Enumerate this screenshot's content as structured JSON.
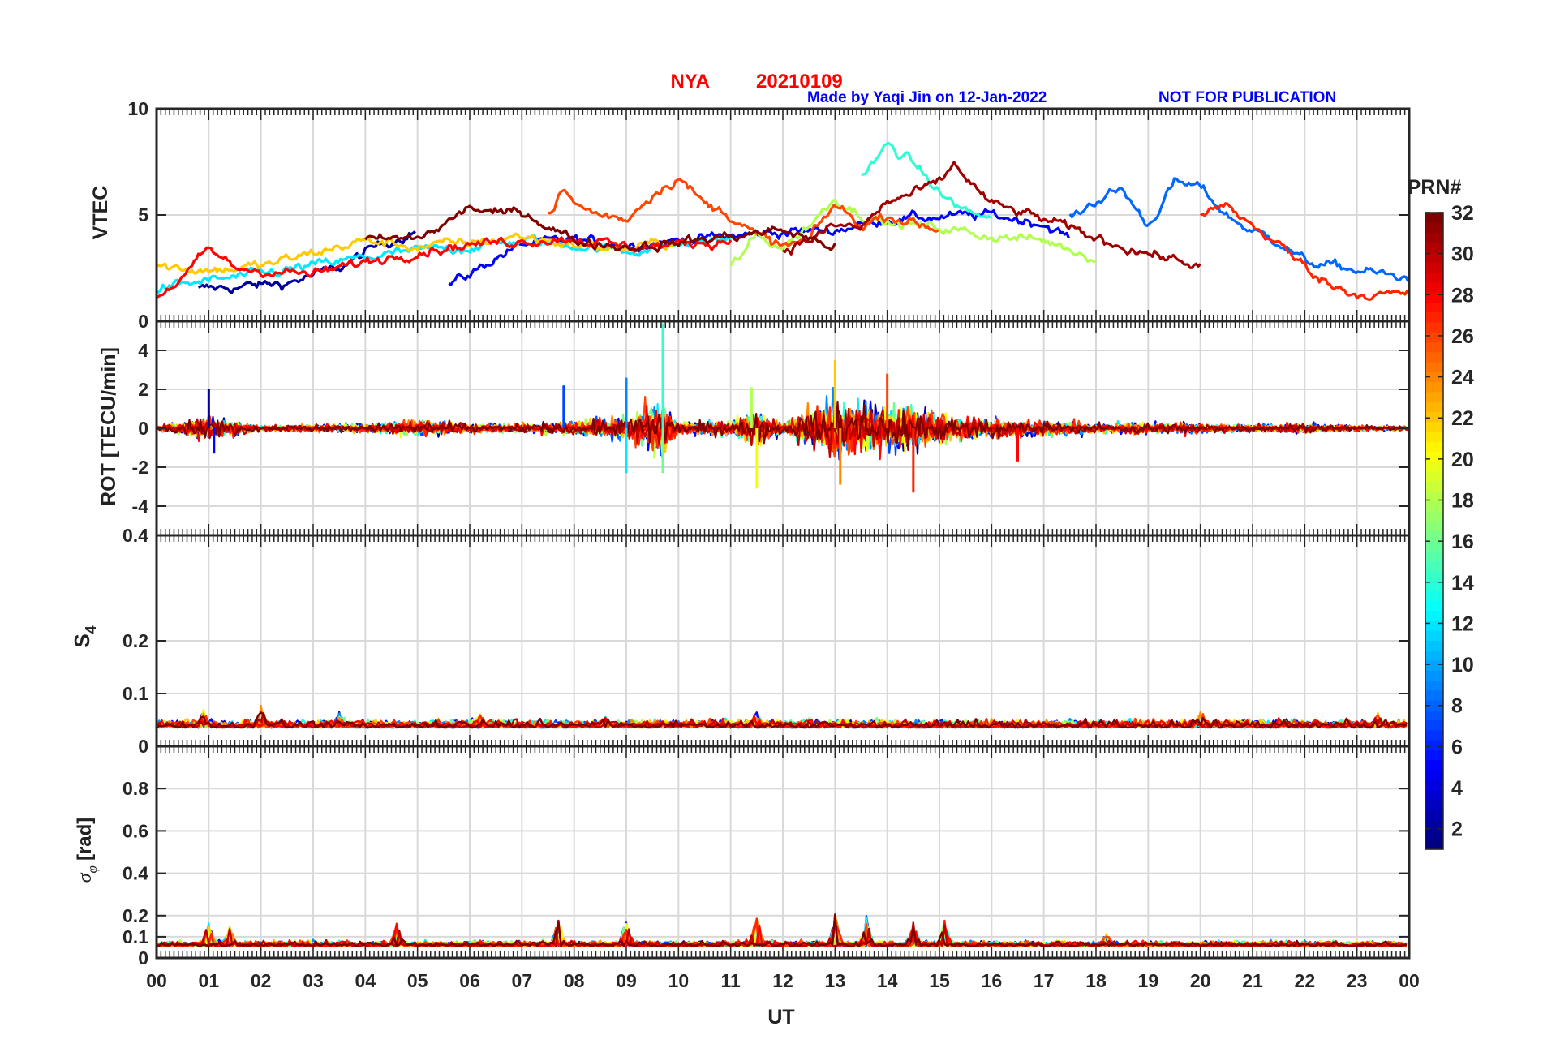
{
  "header": {
    "station": "NYA",
    "date": "20210109",
    "credit": "Made by Yaqi Jin on 12-Jan-2022",
    "notice": "NOT FOR PUBLICATION",
    "title_color": "#ff0000",
    "credit_color": "#0000ff"
  },
  "chart_data": [
    {
      "id": "vtec",
      "type": "line",
      "ylabel": "VTEC",
      "ylim": [
        0,
        10
      ],
      "yticks": [
        0,
        5,
        10
      ],
      "ytick_labels": [
        "0",
        "5",
        "10"
      ],
      "xlim": [
        0,
        24
      ],
      "grid": true,
      "series_summary": [
        {
          "prn": 2,
          "x": [
            0.8,
            1.5,
            2.5,
            3.5,
            4.2,
            5.0
          ],
          "y": [
            1.5,
            1.6,
            1.8,
            2.5,
            3.5,
            4.3
          ]
        },
        {
          "prn": 5,
          "x": [
            5.6,
            6.0,
            6.5,
            7.0,
            8.0,
            9.0,
            10.0,
            11.0,
            12.0,
            13.0,
            14.0,
            15.0,
            16.0,
            17.0,
            17.5
          ],
          "y": [
            1.7,
            2.2,
            3.0,
            3.6,
            3.8,
            3.6,
            3.8,
            4.0,
            4.2,
            4.3,
            4.8,
            4.9,
            5.0,
            4.6,
            3.9
          ]
        },
        {
          "prn": 8,
          "x": [
            17.5,
            18.0,
            18.5,
            19.0,
            19.5,
            20.0,
            20.5,
            21.0,
            21.5,
            22.0,
            23.0,
            24.0
          ],
          "y": [
            4.8,
            5.7,
            6.2,
            4.5,
            6.5,
            6.3,
            5.0,
            4.2,
            3.8,
            2.8,
            2.4,
            2.0
          ]
        },
        {
          "prn": 12,
          "x": [
            0.0,
            1.0,
            2.0,
            3.0,
            4.0,
            5.0,
            6.0,
            7.0,
            8.0,
            9.0,
            10.0,
            11.0
          ],
          "y": [
            1.5,
            1.9,
            2.2,
            2.6,
            3.0,
            3.3,
            3.5,
            3.8,
            3.6,
            3.3,
            3.6,
            3.9
          ]
        },
        {
          "prn": 14,
          "x": [
            13.5,
            13.8,
            14.0,
            14.3,
            14.6,
            15.0,
            15.5,
            16.0
          ],
          "y": [
            6.8,
            7.6,
            8.3,
            7.8,
            7.2,
            6.0,
            5.2,
            4.8
          ]
        },
        {
          "prn": 18,
          "x": [
            11.0,
            11.5,
            12.0,
            12.5,
            13.0,
            13.5,
            14.0,
            15.0,
            16.0,
            17.0,
            18.0
          ],
          "y": [
            2.5,
            4.0,
            3.5,
            4.5,
            5.8,
            5.0,
            4.6,
            4.4,
            4.0,
            3.8,
            3.0
          ]
        },
        {
          "prn": 22,
          "x": [
            0.0,
            1.0,
            2.0,
            3.0,
            4.0,
            5.0,
            6.0,
            7.0,
            8.0,
            9.0,
            10.0
          ],
          "y": [
            2.6,
            2.4,
            2.6,
            3.2,
            3.8,
            3.5,
            3.7,
            4.0,
            3.6,
            3.4,
            3.8
          ]
        },
        {
          "prn": 26,
          "x": [
            7.5,
            7.8,
            8.0,
            8.5,
            9.0,
            9.5,
            10.0,
            10.5,
            11.0,
            11.5,
            12.0,
            12.5,
            13.0,
            13.5,
            14.0,
            15.0
          ],
          "y": [
            5.0,
            6.2,
            5.5,
            5.0,
            4.8,
            6.0,
            6.8,
            5.5,
            5.0,
            4.0,
            3.5,
            3.8,
            5.5,
            4.5,
            5.0,
            4.3
          ]
        },
        {
          "prn": 28,
          "x": [
            0.0,
            0.5,
            1.0,
            1.5,
            2.0,
            3.0,
            4.0,
            5.0,
            6.0,
            7.0,
            8.0,
            9.0,
            10.0,
            11.0
          ],
          "y": [
            1.2,
            2.0,
            3.4,
            2.5,
            2.4,
            2.2,
            2.8,
            3.3,
            3.6,
            3.8,
            3.9,
            3.5,
            3.6,
            3.8
          ]
        },
        {
          "prn": 31,
          "x": [
            12.0,
            12.5,
            13.0,
            13.5,
            14.0,
            14.5,
            15.0,
            15.3,
            15.6,
            16.0,
            17.0,
            18.0,
            19.0,
            19.5,
            20.0
          ],
          "y": [
            3.4,
            3.8,
            4.5,
            4.4,
            5.6,
            6.0,
            6.5,
            7.4,
            6.5,
            5.5,
            4.8,
            3.9,
            3.2,
            2.9,
            2.6
          ]
        },
        {
          "prn": 32,
          "x": [
            4.0,
            5.0,
            5.5,
            6.0,
            6.5,
            7.0,
            8.0,
            9.0,
            10.0,
            11.0,
            12.0,
            13.0
          ],
          "y": [
            3.8,
            3.9,
            4.5,
            5.4,
            5.0,
            5.2,
            3.8,
            3.5,
            3.7,
            4.0,
            4.3,
            3.5
          ]
        },
        {
          "prn": 27,
          "x": [
            20.0,
            20.5,
            21.0,
            21.5,
            22.0,
            22.5,
            23.0,
            24.0
          ],
          "y": [
            5.0,
            5.4,
            4.5,
            3.6,
            2.6,
            1.7,
            1.3,
            1.2
          ]
        }
      ]
    },
    {
      "id": "rot",
      "type": "line",
      "ylabel": "ROT [TECU/min]",
      "ylim": [
        -5.5,
        5.5
      ],
      "yticks": [
        -4,
        -2,
        0,
        2,
        4
      ],
      "ytick_labels": [
        "-4",
        "-2",
        "0",
        "2",
        "4"
      ],
      "xlim": [
        0,
        24
      ],
      "grid": true,
      "activity_envelope": {
        "x": [
          0,
          1,
          2,
          3,
          4,
          5,
          6,
          7,
          8,
          9,
          9.7,
          10,
          11,
          11.5,
          12,
          13,
          13.5,
          14,
          14.5,
          15,
          16,
          17,
          18,
          19,
          20,
          21,
          22,
          23,
          24
        ],
        "amplitude": [
          0.2,
          1.2,
          0.3,
          0.4,
          0.5,
          0.9,
          0.5,
          0.5,
          0.8,
          1.2,
          3.0,
          0.6,
          0.8,
          2.0,
          0.6,
          3.3,
          3.0,
          2.5,
          2.5,
          1.5,
          1.0,
          0.8,
          0.5,
          0.6,
          0.5,
          0.4,
          0.5,
          0.3,
          0.2
        ]
      },
      "spikes": [
        {
          "x": 1.0,
          "y": 2.0
        },
        {
          "x": 1.1,
          "y": -1.3
        },
        {
          "x": 7.8,
          "y": 2.2
        },
        {
          "x": 9.0,
          "y": 2.6
        },
        {
          "x": 9.0,
          "y": -2.3
        },
        {
          "x": 9.7,
          "y": 5.4
        },
        {
          "x": 9.7,
          "y": -2.3
        },
        {
          "x": 11.4,
          "y": 2.1
        },
        {
          "x": 11.5,
          "y": -3.1
        },
        {
          "x": 13.0,
          "y": 3.5
        },
        {
          "x": 13.1,
          "y": -2.9
        },
        {
          "x": 14.0,
          "y": 2.8
        },
        {
          "x": 14.5,
          "y": -3.3
        },
        {
          "x": 16.5,
          "y": -1.7
        }
      ]
    },
    {
      "id": "s4",
      "type": "line",
      "ylabel": "S4",
      "ylim": [
        0,
        0.4
      ],
      "yticks": [
        0,
        0.1,
        0.2,
        0.4
      ],
      "ytick_labels": [
        "0",
        "0.1",
        "0.2",
        "0.4"
      ],
      "xlim": [
        0,
        24
      ],
      "grid": true,
      "baseline": 0.035,
      "noise": 0.012,
      "peaks": [
        {
          "x": 0.9,
          "y": 0.07
        },
        {
          "x": 2.0,
          "y": 0.08
        },
        {
          "x": 3.5,
          "y": 0.065
        },
        {
          "x": 6.2,
          "y": 0.065
        },
        {
          "x": 8.6,
          "y": 0.06
        },
        {
          "x": 11.5,
          "y": 0.07
        },
        {
          "x": 20.0,
          "y": 0.075
        },
        {
          "x": 23.4,
          "y": 0.065
        }
      ]
    },
    {
      "id": "sigma_phi",
      "type": "line",
      "ylabel": "σ",
      "ylabel_subscript": "φ",
      "ylabel_unit": "[rad]",
      "ylim": [
        0,
        1
      ],
      "yticks": [
        0,
        0.1,
        0.2,
        0.4,
        0.6,
        0.8
      ],
      "ytick_labels": [
        "0",
        "0.1",
        "0.2",
        "0.4",
        "0.6",
        "0.8"
      ],
      "xlim": [
        0,
        24
      ],
      "grid": true,
      "baseline": 0.055,
      "noise": 0.02,
      "peaks": [
        {
          "x": 1.0,
          "y": 0.18
        },
        {
          "x": 1.4,
          "y": 0.15
        },
        {
          "x": 4.6,
          "y": 0.17
        },
        {
          "x": 7.7,
          "y": 0.2
        },
        {
          "x": 9.0,
          "y": 0.19
        },
        {
          "x": 11.5,
          "y": 0.21
        },
        {
          "x": 13.0,
          "y": 0.21
        },
        {
          "x": 13.6,
          "y": 0.2
        },
        {
          "x": 14.5,
          "y": 0.18
        },
        {
          "x": 15.1,
          "y": 0.18
        },
        {
          "x": 18.2,
          "y": 0.12
        }
      ]
    }
  ],
  "x_axis": {
    "label": "UT",
    "tick_labels": [
      "00",
      "01",
      "02",
      "03",
      "04",
      "05",
      "06",
      "07",
      "08",
      "09",
      "10",
      "11",
      "12",
      "13",
      "14",
      "15",
      "16",
      "17",
      "18",
      "19",
      "20",
      "21",
      "22",
      "23",
      "00"
    ]
  },
  "colorbar": {
    "label": "PRN#",
    "range": [
      1,
      32
    ],
    "tick_labels": [
      "2",
      "4",
      "6",
      "8",
      "10",
      "12",
      "14",
      "16",
      "18",
      "20",
      "22",
      "24",
      "26",
      "28",
      "30",
      "32"
    ],
    "colormap": "jet"
  }
}
